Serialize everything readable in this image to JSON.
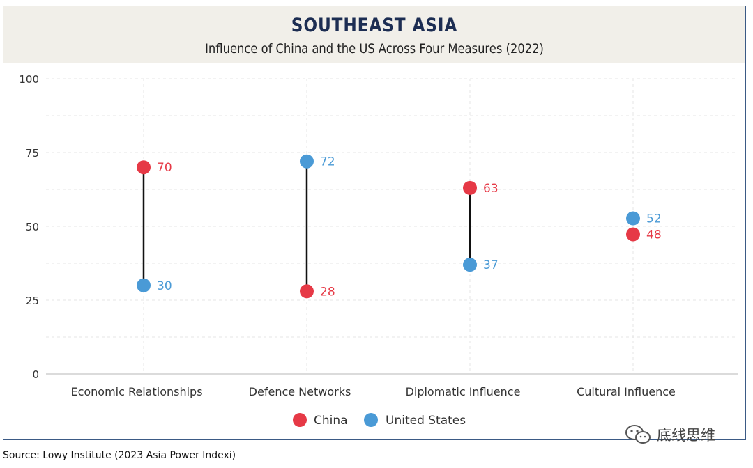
{
  "header": {
    "title": "SOUTHEAST ASIA",
    "subtitle": "Influence of China and the US Across Four Measures (2022)"
  },
  "chart_data": {
    "type": "dumbbell",
    "title": "SOUTHEAST ASIA",
    "subtitle": "Influence of China and the US Across Four Measures (2022)",
    "categories": [
      "Economic Relationships",
      "Defence Networks",
      "Diplomatic Influence",
      "Cultural Influence"
    ],
    "series": [
      {
        "name": "China",
        "color": "#e63946",
        "values": [
          70,
          28,
          63,
          48
        ]
      },
      {
        "name": "United States",
        "color": "#4a9ad6",
        "values": [
          30,
          72,
          37,
          52
        ]
      }
    ],
    "ylim": [
      0,
      100
    ],
    "yticks": [
      0,
      25,
      50,
      75,
      100
    ],
    "xlabel": "",
    "ylabel": "",
    "grid": true,
    "legend_position": "bottom-center"
  },
  "watermark": {
    "text": "底线思维",
    "icon": "wechat-icon"
  },
  "source": "Source: Lowy Institute (2023 Asia Power Indexi)"
}
